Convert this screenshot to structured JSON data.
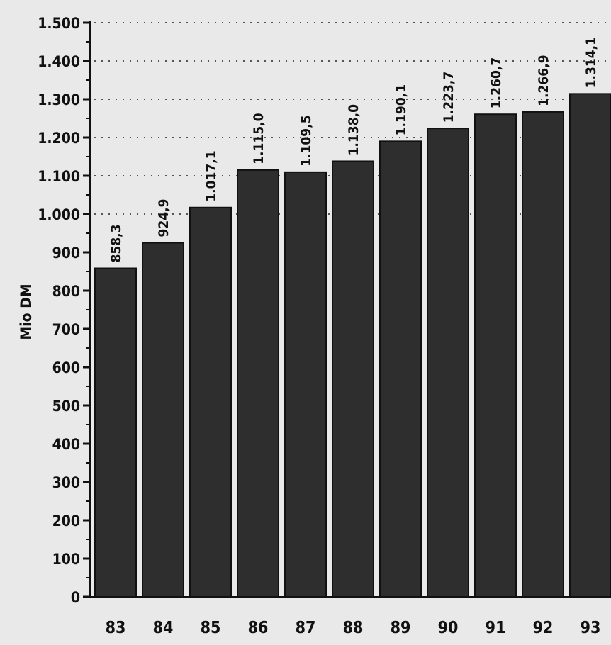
{
  "chart_data": {
    "type": "bar",
    "title": "",
    "xlabel": "",
    "ylabel": "Mio DM",
    "categories": [
      "83",
      "84",
      "85",
      "86",
      "87",
      "88",
      "89",
      "90",
      "91",
      "92",
      "93"
    ],
    "values": [
      858.3,
      924.9,
      1017.1,
      1115.0,
      1109.5,
      1138.0,
      1190.1,
      1223.7,
      1260.7,
      1266.9,
      1314.1
    ],
    "value_labels": [
      "858,3",
      "924,9",
      "1.017,1",
      "1.115,0",
      "1.109,5",
      "1.138,0",
      "1.190,1",
      "1.223,7",
      "1.260,7",
      "1.266,9",
      "1.314,1"
    ],
    "ylim": [
      0,
      1500
    ],
    "y_ticks": [
      0,
      100,
      200,
      300,
      400,
      500,
      600,
      700,
      800,
      900,
      1000,
      1100,
      1200,
      1300,
      1400,
      1500
    ],
    "y_tick_labels": [
      "0",
      "100",
      "200",
      "300",
      "400",
      "500",
      "600",
      "700",
      "800",
      "900",
      "1.000",
      "1.100",
      "1.200",
      "1.300",
      "1.400",
      "1.500"
    ],
    "grid": "dotted horizontal above 1.000",
    "bar_color": "#2e2e2e",
    "background_color": "#e9e9e9"
  }
}
